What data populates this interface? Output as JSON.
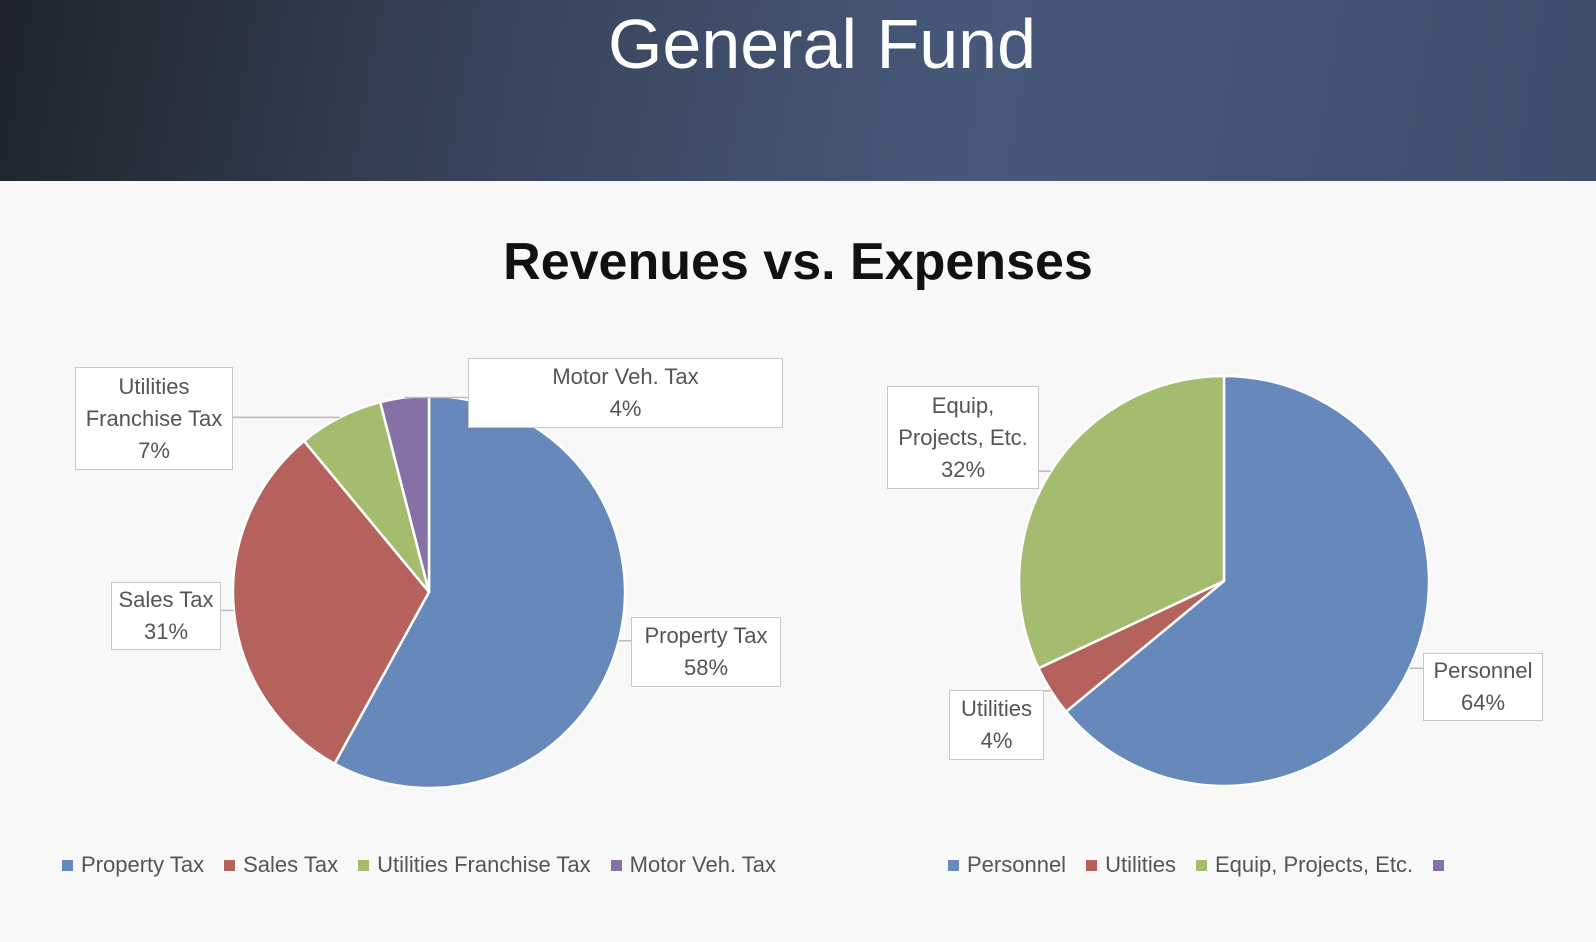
{
  "header": {
    "title": "General Fund"
  },
  "slide_title": "Revenues vs. Expenses",
  "chart_data": [
    {
      "type": "pie",
      "categories": [
        "Property Tax",
        "Sales Tax",
        "Utilities Franchise Tax",
        "Motor Veh. Tax"
      ],
      "values": [
        58,
        31,
        7,
        4
      ],
      "value_labels": [
        "58%",
        "31%",
        "7%",
        "4%"
      ],
      "colors": [
        "#6688bb",
        "#b5625c",
        "#a5bb6e",
        "#8671a6"
      ],
      "legend": "bottom"
    },
    {
      "type": "pie",
      "categories": [
        "Personnel",
        "Utilities",
        "Equip, Projects, Etc.",
        null
      ],
      "values": [
        64,
        4,
        32,
        0
      ],
      "value_labels": [
        "64%",
        "4%",
        "32%",
        null
      ],
      "colors": [
        "#6688bb",
        "#b5625c",
        "#a5bb6e",
        "#8671a6"
      ],
      "legend": "bottom"
    }
  ]
}
